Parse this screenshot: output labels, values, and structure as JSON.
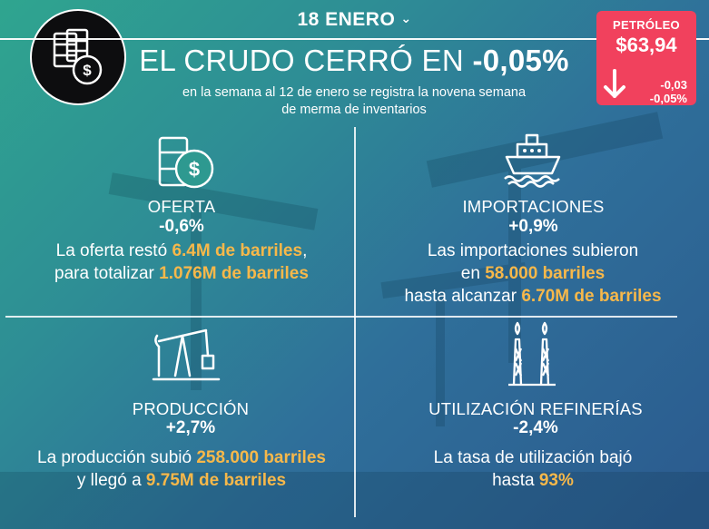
{
  "header": {
    "date": "18 ENERO",
    "title_prefix": "EL CRUDO CERRÓ EN ",
    "title_value": "-0,05%",
    "subtitle_line1": "en la semana al 12 de enero se registra la novena semana",
    "subtitle_line2": "de merma de inventarios"
  },
  "price": {
    "label": "PETRÓLEO",
    "value": "$63,94",
    "change_abs": "-0,03",
    "change_pct": "-0,05%",
    "bg_color": "#f1415d"
  },
  "colors": {
    "highlight": "#f7b84a",
    "text": "#ffffff"
  },
  "quadrants": {
    "oferta": {
      "icon": "barrel-dollar-icon",
      "name": "OFERTA",
      "pct": "-0,6%",
      "l1_a": "La oferta restó ",
      "l1_hl": "6.4M de barriles",
      "l1_b": ",",
      "l2_a": "para totalizar ",
      "l2_hl": "1.076M de barriles"
    },
    "importaciones": {
      "icon": "ship-icon",
      "name": "IMPORTACIONES",
      "pct": "+0,9%",
      "l1": "Las importaciones subieron",
      "l2_a": "en ",
      "l2_hl": "58.000 barriles",
      "l3_a": "hasta alcanzar ",
      "l3_hl": "6.70M de barriles"
    },
    "produccion": {
      "icon": "pumpjack-icon",
      "name": "PRODUCCIÓN",
      "pct": "+2,7%",
      "l1_a": "La producción subió ",
      "l1_hl": "258.000 barriles",
      "l2_a": "y llegó a ",
      "l2_hl": "9.75M de barriles"
    },
    "refinerias": {
      "icon": "refinery-icon",
      "name": "UTILIZACIÓN REFINERÍAS",
      "pct": "-2,4%",
      "l1": "La tasa de utilización bajó",
      "l2_a": "hasta ",
      "l2_hl": "93%"
    }
  }
}
